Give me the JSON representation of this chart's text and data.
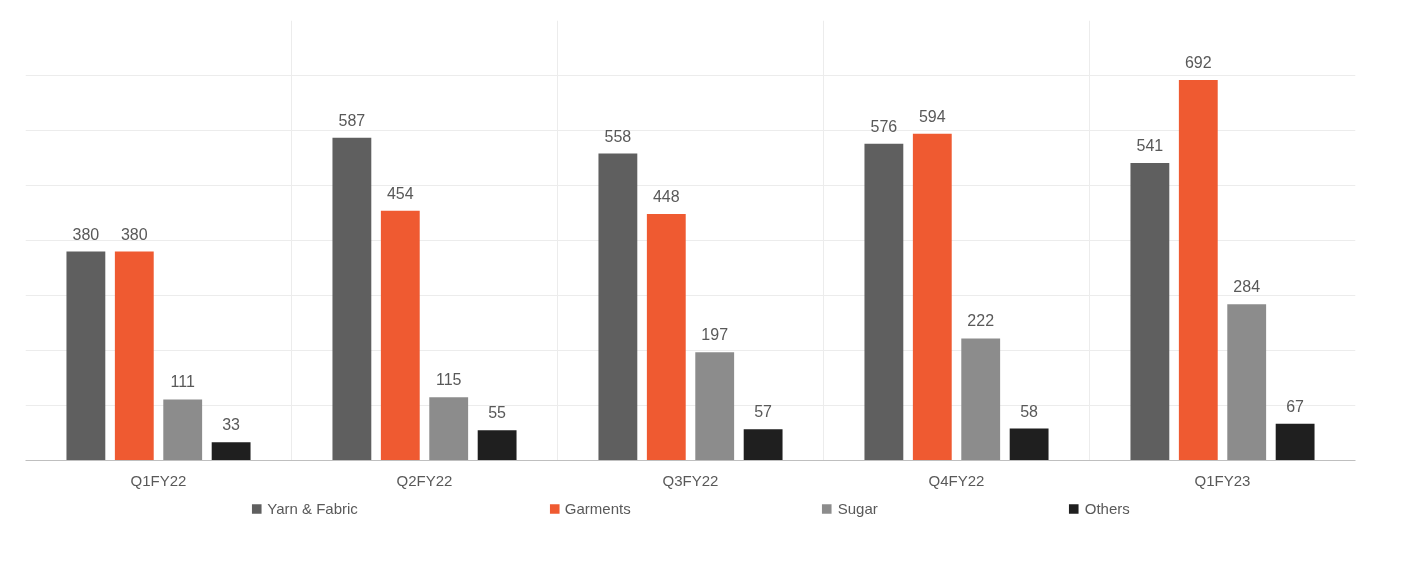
{
  "chart_data": {
    "type": "bar",
    "categories": [
      "Q1FY22",
      "Q2FY22",
      "Q3FY22",
      "Q4FY22",
      "Q1FY23"
    ],
    "series": [
      {
        "name": "Yarn & Fabric",
        "color": "#5f5f5f",
        "values": [
          380,
          587,
          558,
          576,
          541
        ]
      },
      {
        "name": "Garments",
        "color": "#ef5a31",
        "values": [
          380,
          454,
          448,
          594,
          692
        ]
      },
      {
        "name": "Sugar",
        "color": "#8c8c8c",
        "values": [
          111,
          115,
          197,
          222,
          284
        ]
      },
      {
        "name": "Others",
        "color": "#1f1f1f",
        "values": [
          33,
          55,
          57,
          58,
          67
        ]
      }
    ],
    "ylim": [
      0,
      800
    ],
    "yticks": [
      {
        "value": 0,
        "label": null
      },
      {
        "value": 100,
        "label": null
      },
      {
        "value": 200,
        "label": null
      },
      {
        "value": 300,
        "label": null
      },
      {
        "value": 400,
        "label": null
      },
      {
        "value": 500,
        "label": null
      },
      {
        "value": 600,
        "label": null
      },
      {
        "value": 700,
        "label": null
      }
    ],
    "tick_labels": "x",
    "grid": true,
    "legend": "bottom",
    "data_labels": true
  }
}
